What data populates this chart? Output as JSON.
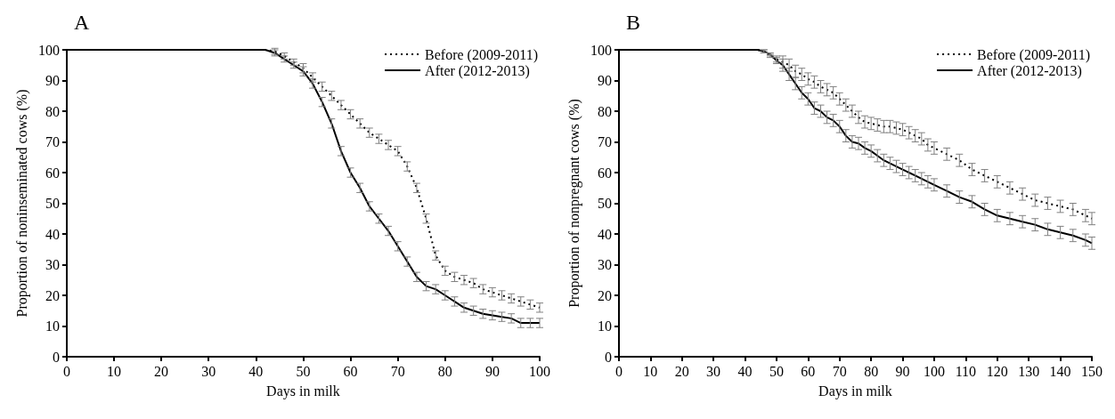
{
  "chart_data": [
    {
      "type": "line",
      "title": "A",
      "xlabel": "Days in milk",
      "ylabel": "Proportion of noninseminated cows (%)",
      "xlim": [
        0,
        100
      ],
      "ylim": [
        0,
        100
      ],
      "xticks": [
        0,
        10,
        20,
        30,
        40,
        50,
        60,
        70,
        80,
        90,
        100
      ],
      "yticks": [
        0,
        10,
        20,
        30,
        40,
        50,
        60,
        70,
        80,
        90,
        100
      ],
      "grid": false,
      "legend": "top right",
      "marker": "none",
      "x": [
        0,
        42,
        44,
        46,
        48,
        50,
        52,
        54,
        56,
        58,
        60,
        62,
        64,
        66,
        68,
        70,
        72,
        74,
        76,
        78,
        80,
        82,
        84,
        86,
        88,
        90,
        92,
        94,
        96,
        98,
        100
      ],
      "series": [
        {
          "name": "Before (2009-2011)",
          "color": "#000000",
          "line_style": "dotted",
          "values": [
            100,
            100,
            99.5,
            98,
            96,
            94,
            91,
            88,
            85,
            82,
            79,
            76,
            73,
            71,
            69,
            67,
            62,
            55,
            45,
            33,
            28,
            26,
            25,
            24,
            22,
            21,
            20,
            19,
            18,
            17,
            16
          ],
          "errors": [
            null,
            null,
            1,
            1,
            1,
            1.5,
            1.5,
            1.5,
            1.5,
            1.5,
            1.5,
            1.5,
            1.5,
            1.5,
            1.5,
            1.5,
            1.5,
            1.5,
            1.5,
            1.5,
            1.5,
            1.5,
            1.5,
            1.5,
            1.5,
            1.5,
            1.5,
            1.5,
            1.5,
            1.5,
            1.5
          ]
        },
        {
          "name": "After (2012-2013)",
          "color": "#000000",
          "line_style": "solid",
          "values": [
            100,
            100,
            99,
            97,
            95,
            93,
            89,
            83,
            76,
            67,
            60,
            55,
            49,
            45,
            41,
            36,
            31,
            26,
            23,
            22,
            20,
            18,
            16,
            15,
            14,
            13.5,
            13,
            12.5,
            11,
            11,
            11
          ],
          "errors": [
            null,
            null,
            1,
            1,
            1,
            1.5,
            1.5,
            1.5,
            1.5,
            1.5,
            1.5,
            1.5,
            1.5,
            1.5,
            1.5,
            1.5,
            1.5,
            1.5,
            1.5,
            1.5,
            1.5,
            1.5,
            1.5,
            1.5,
            1.5,
            1.5,
            1.5,
            1.5,
            1.5,
            1.5,
            1.5
          ]
        }
      ]
    },
    {
      "type": "line",
      "title": "B",
      "xlabel": "Days in milk",
      "ylabel": "Proportion of nonpregnant cows (%)",
      "xlim": [
        0,
        150
      ],
      "ylim": [
        0,
        100
      ],
      "xticks": [
        0,
        10,
        20,
        30,
        40,
        50,
        60,
        70,
        80,
        90,
        100,
        110,
        120,
        130,
        140,
        150
      ],
      "yticks": [
        0,
        10,
        20,
        30,
        40,
        50,
        60,
        70,
        80,
        90,
        100
      ],
      "grid": false,
      "legend": "top right",
      "marker": "none",
      "x": [
        0,
        44,
        46,
        48,
        50,
        52,
        54,
        56,
        58,
        60,
        62,
        64,
        66,
        68,
        70,
        72,
        74,
        76,
        78,
        80,
        82,
        84,
        86,
        88,
        90,
        92,
        94,
        96,
        98,
        100,
        104,
        108,
        112,
        116,
        120,
        124,
        128,
        132,
        136,
        140,
        144,
        148,
        150
      ],
      "series": [
        {
          "name": "Before (2009-2011)",
          "color": "#000000",
          "line_style": "dotted",
          "values": [
            100,
            100,
            99.5,
            98,
            97,
            96,
            95,
            93,
            92,
            90.5,
            89.5,
            88,
            87,
            86,
            84,
            82,
            80,
            78,
            76.5,
            76,
            75.5,
            75,
            75,
            74.5,
            74,
            73,
            72,
            71,
            69,
            68,
            66,
            64,
            61,
            59,
            57,
            55,
            53,
            51,
            50,
            49,
            48,
            46,
            45
          ],
          "errors": [
            null,
            null,
            0.5,
            0.5,
            1,
            2,
            2,
            2,
            2,
            2,
            2,
            2,
            2,
            2,
            2,
            2,
            2,
            2,
            2,
            2,
            2,
            2,
            2,
            2,
            2,
            2,
            2,
            2,
            2,
            2,
            2,
            2,
            2,
            2,
            2,
            2,
            2,
            2,
            2,
            2,
            2,
            2,
            2
          ]
        },
        {
          "name": "After (2012-2013)",
          "color": "#000000",
          "line_style": "solid",
          "values": [
            100,
            100,
            99.5,
            98.5,
            96.5,
            95,
            92,
            89,
            86,
            84,
            81,
            80,
            78,
            77,
            75,
            72,
            70,
            69.5,
            68,
            67,
            65.5,
            64,
            63,
            62,
            61,
            60,
            59,
            58,
            57,
            56,
            54,
            52,
            50.5,
            48,
            46,
            45,
            44,
            43,
            41.5,
            40.5,
            39.5,
            38,
            37
          ],
          "errors": [
            null,
            null,
            0.5,
            0.5,
            1,
            2,
            2,
            2,
            2,
            2,
            2,
            2,
            2,
            2,
            2,
            2,
            2,
            2,
            2,
            2,
            2,
            2,
            2,
            2,
            2,
            2,
            2,
            2,
            2,
            2,
            2,
            2,
            2,
            2,
            2,
            2,
            2,
            2,
            2,
            2,
            2,
            2,
            2
          ]
        }
      ]
    }
  ]
}
